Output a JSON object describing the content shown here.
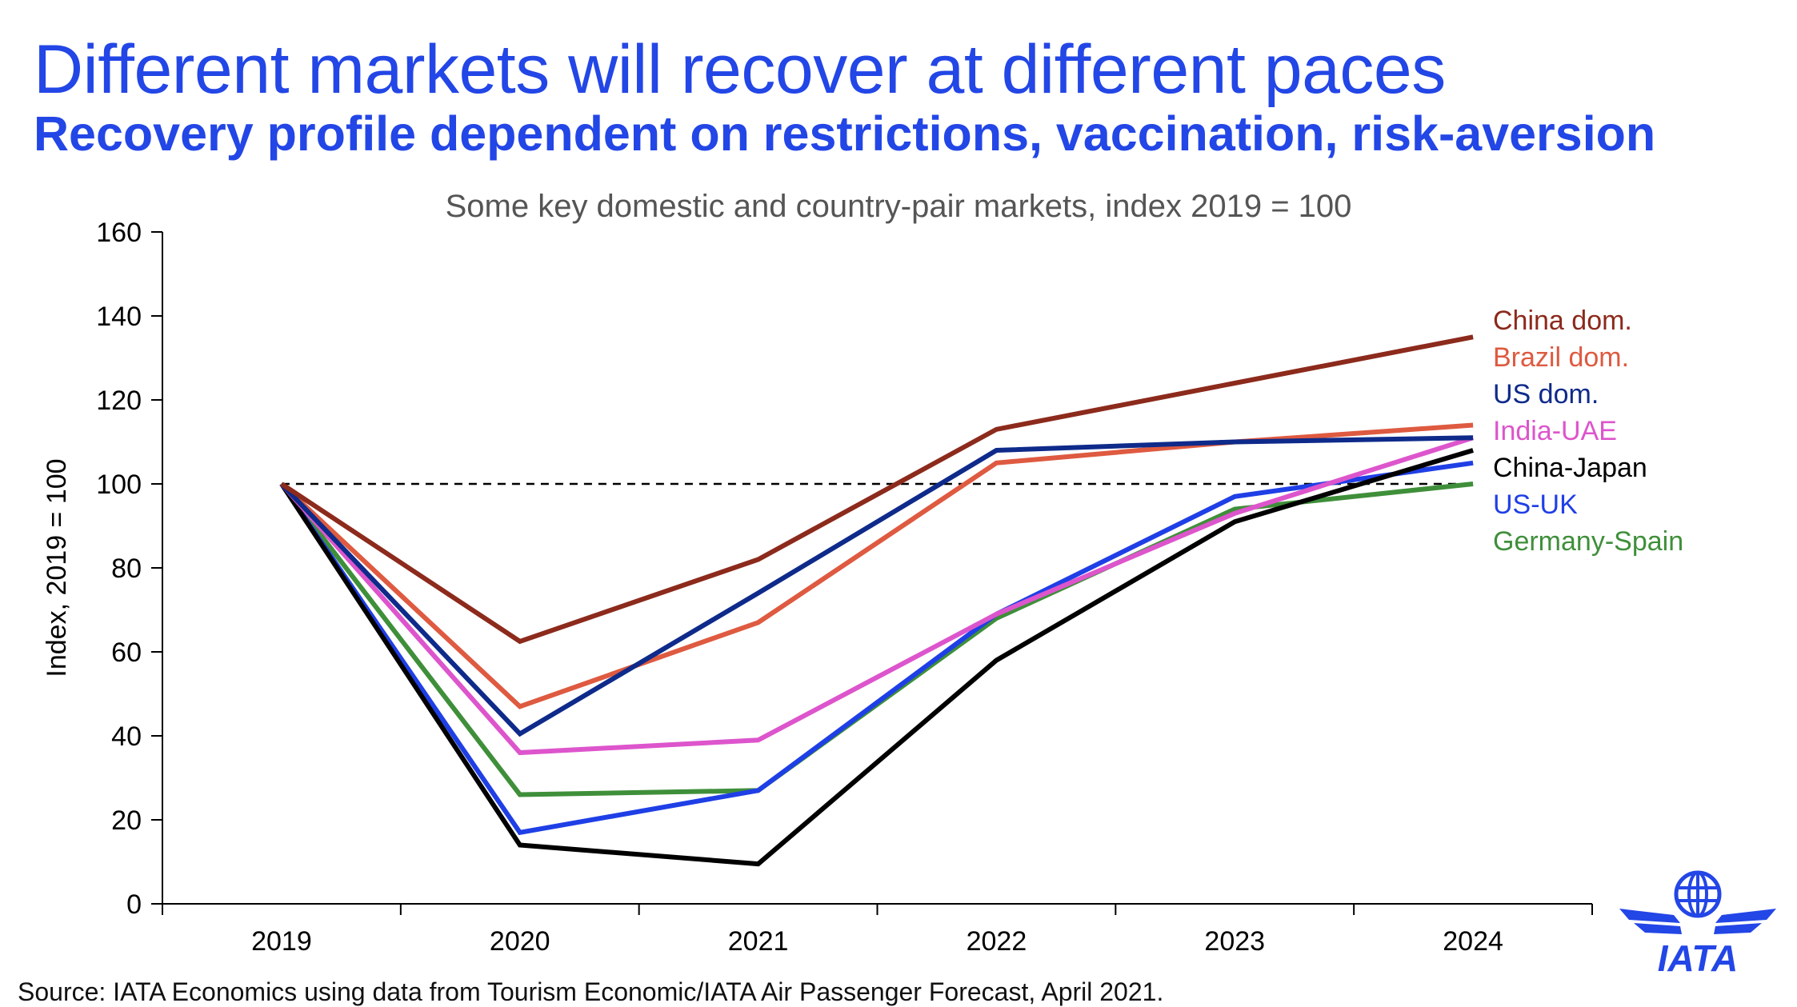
{
  "header": {
    "title": "Different markets will recover at different paces",
    "subtitle": "Recovery profile dependent on restrictions, vaccination, risk-aversion"
  },
  "footer": {
    "source": "Source: IATA Economics using data from Tourism Economic/IATA Air Passenger Forecast, April 2021."
  },
  "logo": {
    "text": "IATA",
    "icon": "iata-globe-wings-icon",
    "color": "#2346e6"
  },
  "chart_data": {
    "type": "line",
    "title": "Some key domestic and country-pair markets, index 2019 = 100",
    "xlabel": "",
    "ylabel": "Index, 2019 = 100",
    "x": [
      "2019",
      "2020",
      "2021",
      "2022",
      "2023",
      "2024"
    ],
    "ylim": [
      0,
      160
    ],
    "yticks": [
      0,
      20,
      40,
      60,
      80,
      100,
      120,
      140,
      160
    ],
    "grid": false,
    "legend": "right-of-lines",
    "reference_line": {
      "y": 100,
      "style": "dashed",
      "color": "#000000"
    },
    "series": [
      {
        "name": "Germany-Spain",
        "color": "#3f8f3a",
        "values": [
          100,
          26,
          27,
          68,
          94,
          100
        ]
      },
      {
        "name": "US-UK",
        "color": "#1f3fe6",
        "values": [
          100,
          17,
          27,
          69,
          97,
          105
        ]
      },
      {
        "name": "China-Japan",
        "color": "#000000",
        "values": [
          100,
          14,
          9.5,
          58,
          91,
          108
        ]
      },
      {
        "name": "India-UAE",
        "color": "#dd55cc",
        "values": [
          100,
          36,
          39,
          69,
          93,
          111
        ]
      },
      {
        "name": "Brazil dom.",
        "color": "#de5a40",
        "values": [
          100,
          47,
          67,
          105,
          110,
          114
        ]
      },
      {
        "name": "US dom.",
        "color": "#0e2a8a",
        "values": [
          100,
          40.5,
          74,
          108,
          110,
          111
        ]
      },
      {
        "name": "China dom.",
        "color": "#8c2a1c",
        "values": [
          100,
          62.5,
          82,
          113,
          124,
          135
        ]
      }
    ],
    "legend_order": [
      "China dom.",
      "Brazil dom.",
      "US dom.",
      "India-UAE",
      "China-Japan",
      "US-UK",
      "Germany-Spain"
    ]
  }
}
